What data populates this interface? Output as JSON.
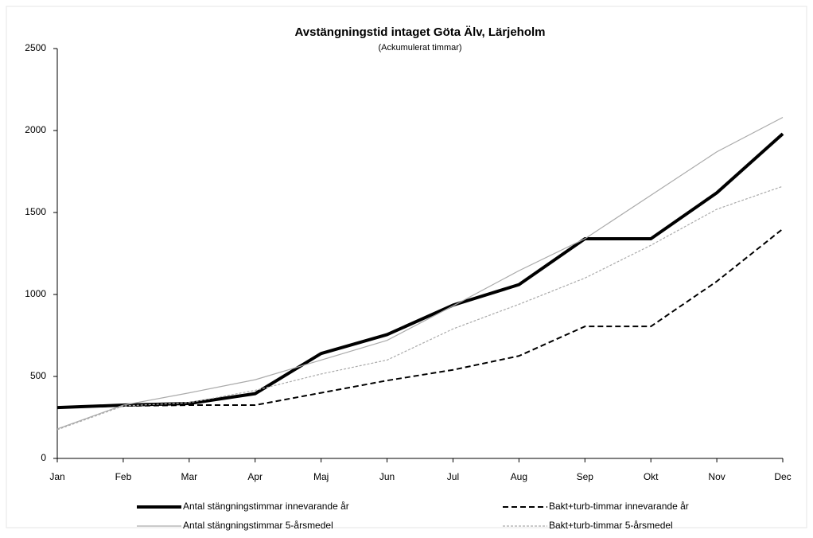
{
  "chart_data": {
    "type": "line",
    "title": "Avstängningstid intaget Göta Älv, Lärjeholm",
    "subtitle": "(Ackumulerat timmar)",
    "categories": [
      "Jan",
      "Feb",
      "Mar",
      "Apr",
      "Maj",
      "Jun",
      "Jul",
      "Aug",
      "Sep",
      "Okt",
      "Nov",
      "Dec"
    ],
    "ylim": [
      0,
      2500
    ],
    "yticks": [
      0,
      500,
      1000,
      1500,
      2000,
      2500
    ],
    "grid": false,
    "series": [
      {
        "name": "Antal stängningstimmar innevarande år",
        "color": "#000000",
        "width": 4,
        "style": "solid",
        "values": [
          310,
          325,
          335,
          395,
          640,
          755,
          935,
          1060,
          1340,
          1340,
          1620,
          1980
        ]
      },
      {
        "name": "Bakt+turb-timmar innevarande år",
        "color": "#000000",
        "width": 2,
        "style": "dashed",
        "values": [
          310,
          320,
          325,
          325,
          400,
          475,
          540,
          625,
          805,
          805,
          1080,
          1400
        ]
      },
      {
        "name": "Antal stängningstimmar 5-årsmedel",
        "color": "#aaaaaa",
        "width": 1.2,
        "style": "solid",
        "values": [
          180,
          325,
          400,
          480,
          600,
          720,
          930,
          1145,
          1340,
          1605,
          1870,
          2080
        ]
      },
      {
        "name": "Bakt+turb-timmar 5-årsmedel",
        "color": "#aaaaaa",
        "width": 1.2,
        "style": "dotted",
        "values": [
          175,
          320,
          340,
          415,
          515,
          600,
          790,
          940,
          1100,
          1300,
          1520,
          1660
        ]
      }
    ]
  }
}
